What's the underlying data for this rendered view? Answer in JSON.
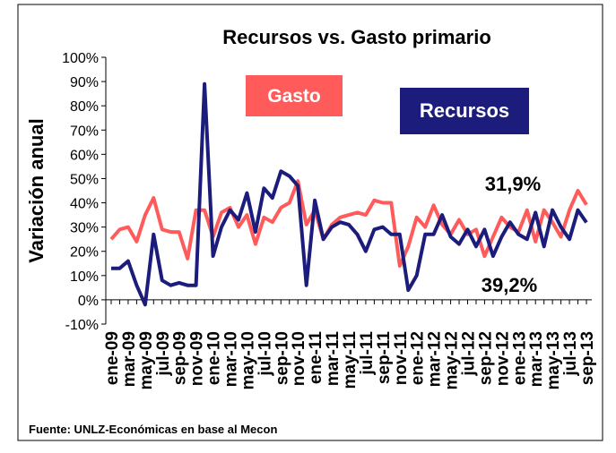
{
  "chart_data": {
    "type": "line",
    "title": "Recursos vs. Gasto primario",
    "y_label": "Variación anual",
    "source": "Fuente: UNLZ-Económicas en base al Mecon",
    "categories": [
      "ene-09",
      null,
      "mar-09",
      null,
      "may-09",
      null,
      "jul-09",
      null,
      "sep-09",
      null,
      "nov-09",
      null,
      "ene-10",
      null,
      "mar-10",
      null,
      "may-10",
      null,
      "jul-10",
      null,
      "sep-10",
      null,
      "nov-10",
      null,
      "ene-11",
      null,
      "mar-11",
      null,
      "may-11",
      null,
      "jul-11",
      null,
      "sep-11",
      null,
      "nov-11",
      null,
      "ene-12",
      null,
      "mar-12",
      null,
      "may-12",
      null,
      "jul-12",
      null,
      "sep-12",
      null,
      "nov-12",
      null,
      "ene-13",
      null,
      "mar-13",
      null,
      "may-13",
      null,
      "jul-13",
      null,
      "sep-13"
    ],
    "series": [
      {
        "name": "Gasto",
        "color": "#ff5b5b",
        "values": [
          25,
          29,
          30,
          24,
          35,
          42,
          29,
          28,
          28,
          17,
          37,
          37,
          26,
          36,
          38,
          30,
          35,
          23,
          34,
          32,
          38,
          40,
          49,
          31,
          37,
          25,
          31,
          34,
          35,
          36,
          35,
          41,
          40,
          40,
          14,
          22,
          34,
          30,
          39,
          31,
          27,
          33,
          27,
          29,
          18,
          26,
          34,
          30,
          28,
          37,
          24,
          37,
          32,
          26,
          37,
          45,
          39.2
        ]
      },
      {
        "name": "Recursos",
        "color": "#1c1c7c",
        "values": [
          13,
          13,
          16,
          6,
          -2,
          27,
          8,
          6,
          7,
          6,
          6,
          89,
          18,
          30,
          37,
          33,
          44,
          28,
          46,
          42,
          53,
          51,
          47,
          6,
          41,
          25,
          30,
          32,
          31,
          27,
          20,
          29,
          30,
          27,
          27,
          4,
          10,
          27,
          27,
          35,
          26,
          23,
          29,
          22,
          29,
          18,
          26,
          32,
          27,
          25,
          36,
          22,
          37,
          30,
          25,
          37,
          31.9
        ]
      }
    ],
    "annotations": [
      "31,9%",
      "39,2%"
    ],
    "ylim": [
      -10,
      100
    ],
    "yticks": [
      {
        "value": -10,
        "label": "-10%"
      },
      {
        "value": 0,
        "label": "0%"
      },
      {
        "value": 10,
        "label": "10%"
      },
      {
        "value": 20,
        "label": "20%"
      },
      {
        "value": 30,
        "label": "30%"
      },
      {
        "value": 40,
        "label": "40%"
      },
      {
        "value": 50,
        "label": "50%"
      },
      {
        "value": 60,
        "label": "60%"
      },
      {
        "value": 70,
        "label": "70%"
      },
      {
        "value": 80,
        "label": "80%"
      },
      {
        "value": 90,
        "label": "90%"
      },
      {
        "value": 100,
        "label": "100%"
      }
    ],
    "grid": false
  }
}
